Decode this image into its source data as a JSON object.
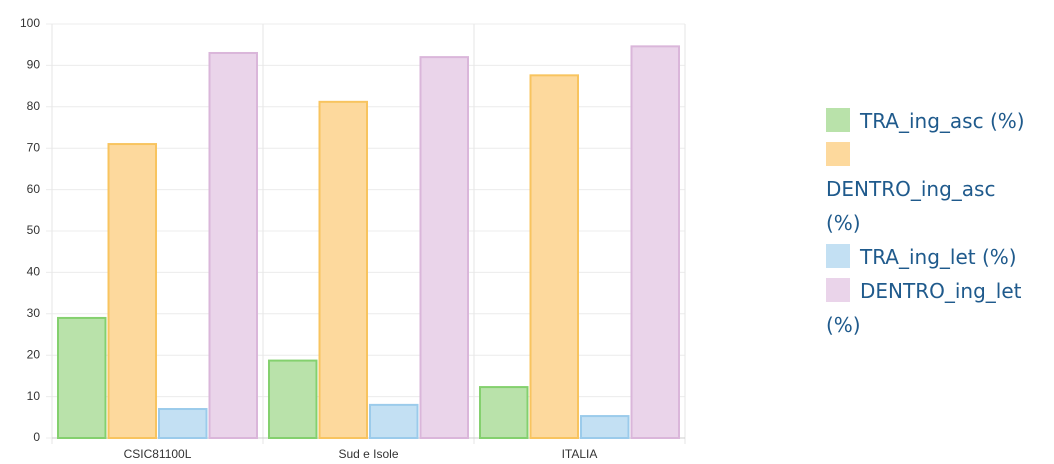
{
  "chart_data": {
    "type": "bar",
    "categories": [
      "CSIC81100L",
      "Sud e Isole",
      "ITALIA"
    ],
    "series": [
      {
        "name": "TRA_ing_asc (%)",
        "color": "#b9e2aa",
        "stroke": "#84d06e",
        "values": [
          29,
          18.7,
          12.3
        ]
      },
      {
        "name": "DENTRO_ing_asc (%)",
        "color": "#fdd99d",
        "stroke": "#f8c45f",
        "values": [
          71,
          81.2,
          87.6
        ]
      },
      {
        "name": "TRA_ing_let (%)",
        "color": "#c3e0f3",
        "stroke": "#9bcbeb",
        "values": [
          7,
          8,
          5.3
        ]
      },
      {
        "name": "DENTRO_ing_let (%)",
        "color": "#ead4ea",
        "stroke": "#dab6da",
        "values": [
          93,
          92,
          94.6
        ]
      }
    ],
    "ylim": [
      0,
      100
    ],
    "yticks": [
      0,
      10,
      20,
      30,
      40,
      50,
      60,
      70,
      80,
      90,
      100
    ],
    "grid": true,
    "legend": "right"
  }
}
